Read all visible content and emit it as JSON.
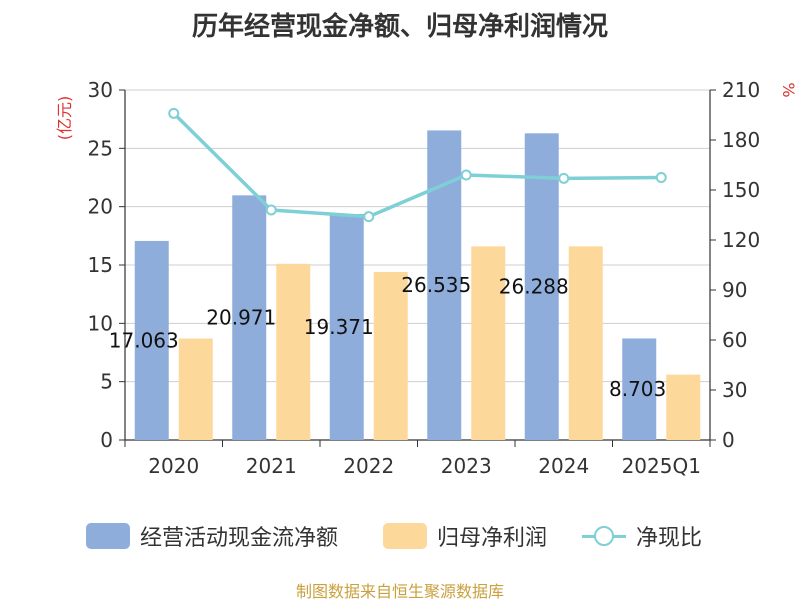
{
  "page": {
    "title": "历年经营现金净额、归母净利润情况",
    "source": "制图数据来自恒生聚源数据库"
  },
  "chart_data": {
    "type": "bar",
    "title": "历年经营现金净额、归母净利润情况",
    "categories": [
      "2020",
      "2021",
      "2022",
      "2023",
      "2024",
      "2025Q1"
    ],
    "y_left": {
      "label": "(亿元)",
      "ticks": [
        0,
        5,
        10,
        15,
        20,
        25,
        30
      ],
      "ylim": [
        0,
        30
      ]
    },
    "y_right": {
      "label": "%",
      "ticks": [
        0,
        30,
        60,
        90,
        120,
        150,
        180,
        210
      ],
      "ylim": [
        0,
        210
      ]
    },
    "grid": true,
    "legend_position": "bottom",
    "series": [
      {
        "name": "经营活动现金流净额",
        "type": "bar",
        "axis": "left",
        "color": "#8eaddb",
        "values": [
          17.063,
          20.971,
          19.371,
          26.535,
          26.288,
          8.703
        ],
        "labels": [
          "17.063",
          "20.971",
          "19.371",
          "26.535",
          "26.288",
          "8.703"
        ]
      },
      {
        "name": "归母净利润",
        "type": "bar",
        "axis": "left",
        "color": "#fdd89b",
        "values": [
          8.7,
          15.1,
          14.4,
          16.6,
          16.6,
          5.6
        ]
      },
      {
        "name": "净现比",
        "type": "line",
        "axis": "right",
        "color": "#7ed0d6",
        "values": [
          196,
          138,
          134,
          159,
          157,
          157.5
        ]
      }
    ]
  }
}
